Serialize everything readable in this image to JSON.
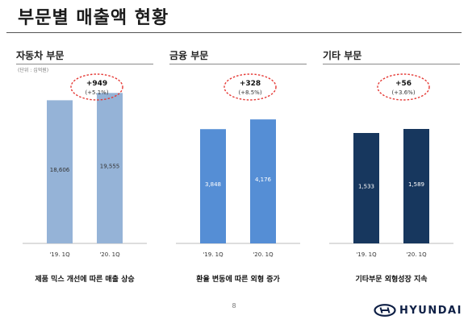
{
  "page": {
    "title": "부문별 매출액 현황",
    "page_number": "8"
  },
  "logo": {
    "brand_word": "HYUNDAI"
  },
  "colors": {
    "auto": "#95b3d7",
    "finance": "#558ed5",
    "other": "#17375e",
    "badge": "#e53935"
  },
  "panels": [
    {
      "label": "자동차 부문",
      "unit": "(단위 : 십억원)",
      "badge_main": "+949",
      "badge_sub": "(+5.1%)",
      "caption": "제품 믹스 개선에 따른 매출 상승"
    },
    {
      "label": "금융 부문",
      "unit": "",
      "badge_main": "+328",
      "badge_sub": "(+8.5%)",
      "caption": "환율 변동에 따른 외형 증가"
    },
    {
      "label": "기타 부문",
      "unit": "",
      "badge_main": "+56",
      "badge_sub": "(+3.6%)",
      "caption": "기타부문 외형성장 지속"
    }
  ],
  "chart_data": [
    {
      "type": "bar",
      "title": "자동차 부문",
      "categories": [
        "'19. 1Q",
        "'20. 1Q"
      ],
      "values": [
        18606,
        19555
      ],
      "value_labels": [
        "18,606",
        "19,555"
      ],
      "color": "#95b3d7",
      "ylim": [
        0,
        22000
      ]
    },
    {
      "type": "bar",
      "title": "금융 부문",
      "categories": [
        "'19. 1Q",
        "'20. 1Q"
      ],
      "values": [
        3848,
        4176
      ],
      "value_labels": [
        "3,848",
        "4,176"
      ],
      "color": "#558ed5",
      "ylim": [
        0,
        5700
      ]
    },
    {
      "type": "bar",
      "title": "기타 부문",
      "categories": [
        "'19. 1Q",
        "'20. 1Q"
      ],
      "values": [
        1533,
        1589
      ],
      "value_labels": [
        "1,533",
        "1,589"
      ],
      "color": "#17375e",
      "ylim": [
        0,
        2350
      ]
    }
  ]
}
